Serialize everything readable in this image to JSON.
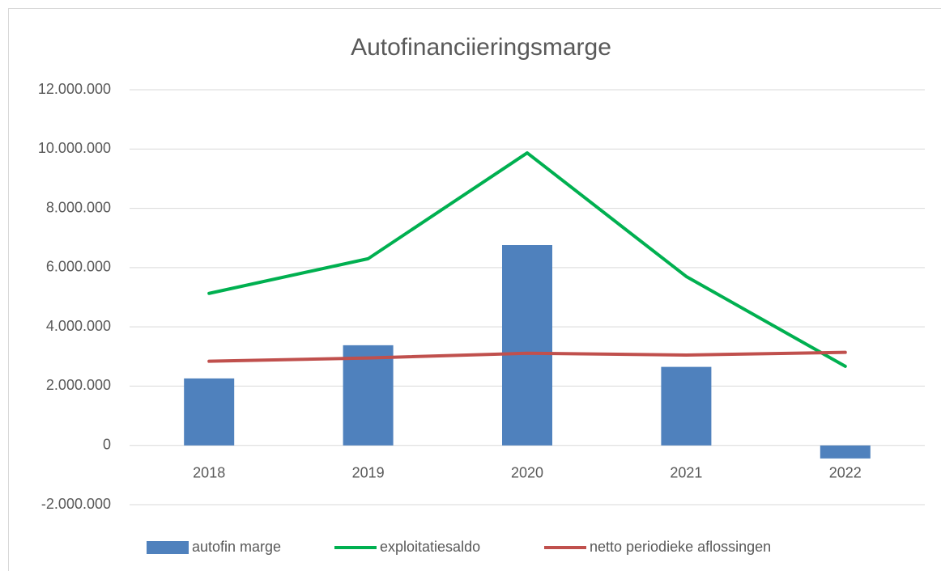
{
  "chart_data": {
    "type": "bar-line",
    "title": "Autofinanciieringsmarge",
    "categories": [
      "2018",
      "2019",
      "2020",
      "2021",
      "2022"
    ],
    "series": [
      {
        "name": "autofin marge",
        "type": "bar",
        "color": "#4f81bd",
        "values": [
          2260000,
          3380000,
          6760000,
          2650000,
          -440000
        ]
      },
      {
        "name": "exploitatiesaldo",
        "type": "line",
        "color": "#00b050",
        "values": [
          5130000,
          6300000,
          9870000,
          5700000,
          2670000
        ]
      },
      {
        "name": "netto periodieke aflossingen",
        "type": "line",
        "color": "#c0504d",
        "values": [
          2840000,
          2950000,
          3110000,
          3050000,
          3140000
        ]
      }
    ],
    "ylim": [
      -2000000,
      12000000
    ],
    "yticks": [
      {
        "value": -2000000,
        "label": "-2.000.000"
      },
      0,
      {
        "value": 2000000,
        "label": "2.000.000"
      },
      {
        "value": 4000000,
        "label": "4.000.000"
      },
      {
        "value": 6000000,
        "label": "6.000.000"
      },
      {
        "value": 8000000,
        "label": "8.000.000"
      },
      {
        "value": 10000000,
        "label": "10.000.000"
      },
      {
        "value": 12000000,
        "label": "12.000.000"
      }
    ],
    "grid": true,
    "legend": "bottom"
  }
}
